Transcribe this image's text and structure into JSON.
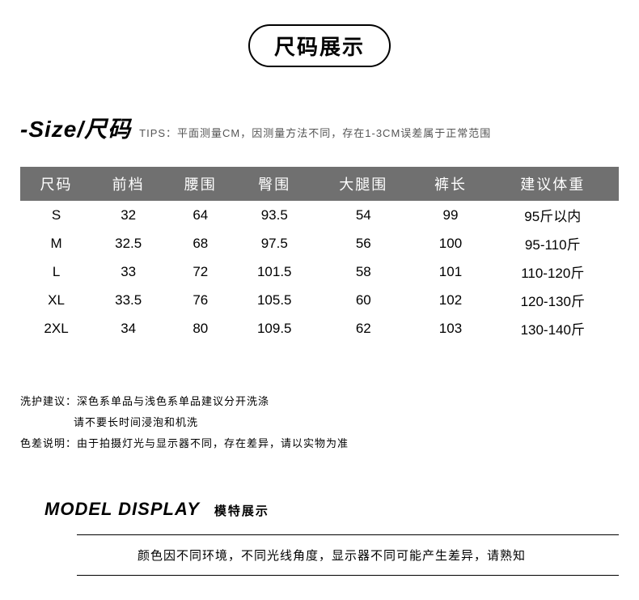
{
  "badge": "尺码展示",
  "sizeHeading": {
    "title": "-Size/尺码",
    "tipsLabel": "TIPS：",
    "tipsText": "平面测量CM，因测量方法不同，存在1-3CM误差属于正常范围"
  },
  "table": {
    "headers": [
      "尺码",
      "前档",
      "腰围",
      "臀围",
      "大腿围",
      "裤长",
      "建议体重"
    ],
    "rows": [
      [
        "S",
        "32",
        "64",
        "93.5",
        "54",
        "99",
        "95斤以内"
      ],
      [
        "M",
        "32.5",
        "68",
        "97.5",
        "56",
        "100",
        "95-110斤"
      ],
      [
        "L",
        "33",
        "72",
        "101.5",
        "58",
        "101",
        "110-120斤"
      ],
      [
        "XL",
        "33.5",
        "76",
        "105.5",
        "60",
        "102",
        "120-130斤"
      ],
      [
        "2XL",
        "34",
        "80",
        "109.5",
        "62",
        "103",
        "130-140斤"
      ]
    ]
  },
  "notes": {
    "wash": {
      "label": "洗护建议：",
      "line1": "深色系单品与浅色系单品建议分开洗涤",
      "line2": "请不要长时间浸泡和机洗"
    },
    "color": {
      "label": "色差说明：",
      "text": "由于拍摄灯光与显示器不同，存在差异，请以实物为准"
    }
  },
  "modelSection": {
    "titleEn": "MODEL DISPLAY",
    "titleCn": "模特展示",
    "note": "颜色因不同环境，不同光线角度，显示器不同可能产生差异，请熟知"
  },
  "colors": {
    "headerBg": "#707070",
    "headerText": "#ffffff",
    "bodyText": "#000000",
    "tipsText": "#555555",
    "background": "#ffffff"
  }
}
